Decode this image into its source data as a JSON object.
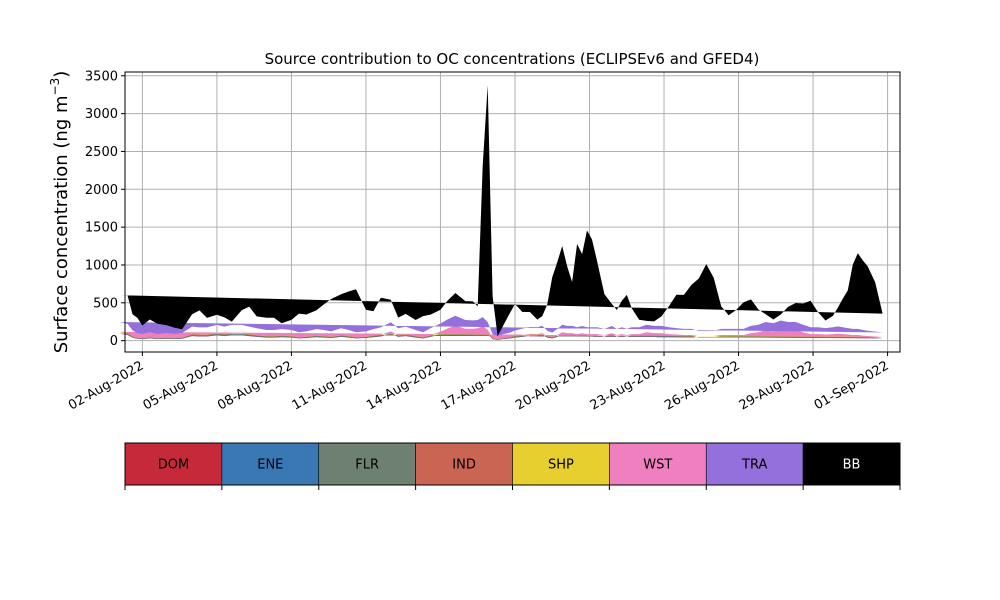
{
  "chart_data": {
    "type": "area",
    "stacked": true,
    "title": "Source contribution to OC concentrations (ECLIPSEv6 and GFED4)",
    "ylabel": "Surface concentration (ng m",
    "ylabel_superscript": "−3",
    "ylabel_close": ")",
    "ylim": [
      -150,
      3550
    ],
    "yticks": [
      0,
      500,
      1000,
      1500,
      2000,
      2500,
      3000,
      3500
    ],
    "xlim_days": [
      -0.7,
      30.5
    ],
    "xtick_labels": [
      "02-Aug-2022",
      "05-Aug-2022",
      "08-Aug-2022",
      "11-Aug-2022",
      "14-Aug-2022",
      "17-Aug-2022",
      "20-Aug-2022",
      "23-Aug-2022",
      "26-Aug-2022",
      "29-Aug-2022",
      "01-Sep-2022"
    ],
    "xtick_days": [
      0,
      3,
      6,
      9,
      12,
      15,
      18,
      21,
      24,
      27,
      30
    ],
    "grid": true,
    "x_days": [
      -0.9,
      -0.6,
      -0.4,
      -0.2,
      0,
      0.3,
      0.6,
      1,
      1.3,
      1.6,
      2,
      2.3,
      2.6,
      3,
      3.3,
      3.6,
      4,
      4.3,
      4.6,
      5,
      5.3,
      5.6,
      6,
      6.3,
      6.6,
      7,
      7.3,
      7.6,
      8,
      8.3,
      8.6,
      9,
      9.3,
      9.6,
      10,
      10.3,
      10.6,
      11,
      11.3,
      11.6,
      12,
      12.3,
      12.6,
      13,
      13.3,
      13.5,
      13.7,
      13.9,
      14.1,
      14.3,
      14.5,
      14.8,
      15,
      15.3,
      15.6,
      15.9,
      16.1,
      16.3,
      16.5,
      16.7,
      16.9,
      17.1,
      17.3,
      17.5,
      17.7,
      17.9,
      18.1,
      18.3,
      18.6,
      18.9,
      19.1,
      19.3,
      19.5,
      19.7,
      20,
      20.3,
      20.6,
      20.9,
      21.2,
      21.5,
      21.8,
      22.1,
      22.4,
      22.7,
      23,
      23.3,
      23.6,
      23.9,
      24.2,
      24.5,
      24.8,
      25.1,
      25.4,
      25.7,
      26,
      26.3,
      26.6,
      26.9,
      27.2,
      27.5,
      27.8,
      28,
      28.2,
      28.4,
      28.6,
      28.8,
      29,
      29.2,
      29.5,
      29.8,
      30
    ],
    "series": [
      {
        "name": "DOM",
        "color": "#c62a3a",
        "values": [
          90,
          75,
          40,
          25,
          20,
          30,
          20,
          25,
          20,
          25,
          60,
          55,
          55,
          70,
          60,
          70,
          70,
          60,
          50,
          40,
          40,
          45,
          40,
          30,
          35,
          45,
          40,
          35,
          50,
          40,
          30,
          35,
          45,
          55,
          90,
          50,
          60,
          40,
          30,
          50,
          80,
          110,
          130,
          100,
          100,
          100,
          120,
          90,
          20,
          10,
          20,
          30,
          40,
          50,
          60,
          60,
          70,
          40,
          30,
          50,
          80,
          70,
          70,
          60,
          70,
          60,
          60,
          60,
          50,
          70,
          50,
          60,
          50,
          60,
          60,
          80,
          70,
          70,
          60,
          55,
          50,
          50,
          40,
          40,
          40,
          50,
          50,
          50,
          50,
          70,
          80,
          100,
          90,
          110,
          100,
          100,
          80,
          60,
          60,
          55,
          60,
          65,
          60,
          55,
          50,
          50,
          45,
          40,
          35,
          30
        ]
      },
      {
        "name": "ENE",
        "color": "#3a78b4",
        "values": [
          3,
          3,
          2,
          2,
          2,
          2,
          2,
          2,
          2,
          2,
          3,
          3,
          3,
          3,
          3,
          3,
          3,
          3,
          3,
          3,
          3,
          3,
          3,
          2,
          2,
          3,
          3,
          2,
          3,
          3,
          2,
          2,
          3,
          3,
          3,
          3,
          3,
          3,
          2,
          3,
          3,
          3,
          3,
          3,
          3,
          3,
          3,
          3,
          2,
          2,
          2,
          2,
          3,
          3,
          3,
          3,
          3,
          3,
          2,
          3,
          3,
          3,
          3,
          3,
          3,
          3,
          3,
          3,
          3,
          3,
          3,
          3,
          3,
          3,
          3,
          3,
          3,
          3,
          3,
          3,
          3,
          3,
          3,
          3,
          3,
          3,
          3,
          3,
          3,
          3,
          3,
          3,
          3,
          3,
          3,
          3,
          3,
          3,
          3,
          3,
          3,
          3,
          3,
          3,
          3,
          3,
          3,
          3,
          3,
          3
        ]
      },
      {
        "name": "FLR",
        "color": "#6e8170",
        "values": [
          2,
          2,
          1,
          1,
          1,
          1,
          1,
          1,
          1,
          1,
          2,
          2,
          2,
          2,
          2,
          2,
          2,
          2,
          2,
          2,
          2,
          2,
          2,
          1,
          1,
          2,
          2,
          1,
          2,
          2,
          1,
          1,
          2,
          2,
          2,
          2,
          2,
          2,
          1,
          2,
          2,
          2,
          2,
          2,
          2,
          2,
          2,
          2,
          1,
          1,
          1,
          1,
          2,
          2,
          2,
          2,
          2,
          2,
          1,
          2,
          2,
          2,
          2,
          2,
          2,
          2,
          2,
          2,
          2,
          2,
          2,
          2,
          2,
          2,
          2,
          2,
          2,
          2,
          2,
          2,
          2,
          2,
          2,
          2,
          2,
          2,
          2,
          2,
          2,
          2,
          2,
          2,
          2,
          2,
          2,
          2,
          2,
          2,
          2,
          2,
          2,
          2,
          2,
          2,
          2,
          2,
          2,
          2,
          2,
          2
        ]
      },
      {
        "name": "IND",
        "color": "#c96552",
        "values": [
          15,
          14,
          10,
          8,
          7,
          9,
          7,
          8,
          7,
          8,
          14,
          13,
          13,
          15,
          14,
          15,
          15,
          14,
          12,
          10,
          10,
          11,
          10,
          8,
          9,
          11,
          10,
          9,
          12,
          10,
          8,
          9,
          11,
          13,
          18,
          12,
          14,
          10,
          8,
          12,
          16,
          20,
          24,
          20,
          20,
          20,
          22,
          18,
          6,
          4,
          6,
          8,
          10,
          12,
          14,
          14,
          15,
          10,
          8,
          12,
          16,
          15,
          15,
          14,
          15,
          14,
          14,
          14,
          12,
          15,
          12,
          14,
          12,
          14,
          14,
          16,
          15,
          15,
          14,
          13,
          12,
          12,
          10,
          10,
          10,
          12,
          12,
          12,
          12,
          15,
          16,
          20,
          18,
          22,
          20,
          20,
          16,
          14,
          14,
          13,
          14,
          15,
          14,
          13,
          12,
          12,
          11,
          10,
          9,
          8
        ]
      },
      {
        "name": "SHP",
        "color": "#e6cf2e",
        "values": [
          3,
          3,
          2,
          2,
          2,
          2,
          2,
          2,
          2,
          2,
          3,
          3,
          3,
          3,
          3,
          3,
          3,
          3,
          3,
          3,
          3,
          3,
          3,
          2,
          2,
          3,
          3,
          2,
          3,
          3,
          2,
          2,
          3,
          3,
          3,
          3,
          3,
          3,
          2,
          3,
          10,
          20,
          30,
          25,
          25,
          30,
          35,
          25,
          5,
          2,
          3,
          4,
          6,
          8,
          6,
          5,
          5,
          3,
          3,
          4,
          5,
          5,
          5,
          4,
          4,
          4,
          4,
          4,
          4,
          4,
          4,
          4,
          4,
          4,
          4,
          5,
          5,
          5,
          4,
          4,
          4,
          4,
          3,
          3,
          3,
          4,
          4,
          4,
          4,
          5,
          5,
          6,
          6,
          7,
          6,
          6,
          5,
          4,
          4,
          4,
          4,
          4,
          4,
          4,
          4,
          4,
          3,
          3,
          3,
          3
        ]
      },
      {
        "name": "WST",
        "color": "#f07fbf",
        "values": [
          4,
          4,
          3,
          2,
          2,
          3,
          2,
          3,
          2,
          3,
          4,
          4,
          4,
          5,
          4,
          5,
          5,
          4,
          4,
          3,
          3,
          3,
          3,
          2,
          3,
          3,
          3,
          3,
          4,
          3,
          2,
          3,
          3,
          4,
          6,
          4,
          4,
          3,
          2,
          4,
          6,
          8,
          10,
          8,
          8,
          8,
          9,
          7,
          2,
          1,
          2,
          2,
          3,
          4,
          4,
          4,
          5,
          3,
          2,
          3,
          5,
          5,
          5,
          4,
          5,
          4,
          4,
          4,
          4,
          5,
          4,
          4,
          4,
          4,
          4,
          5,
          5,
          5,
          4,
          4,
          4,
          4,
          3,
          3,
          3,
          4,
          4,
          4,
          4,
          5,
          5,
          6,
          6,
          7,
          6,
          6,
          5,
          4,
          4,
          4,
          4,
          4,
          4,
          4,
          4,
          4,
          3,
          3,
          3,
          2
        ]
      },
      {
        "name": "TRA",
        "color": "#9370db",
        "values": [
          130,
          120,
          80,
          60,
          55,
          65,
          55,
          60,
          55,
          60,
          100,
          95,
          95,
          110,
          100,
          110,
          110,
          100,
          90,
          80,
          80,
          85,
          80,
          65,
          70,
          85,
          80,
          70,
          90,
          80,
          65,
          70,
          85,
          95,
          120,
          90,
          100,
          80,
          65,
          90,
          110,
          120,
          130,
          115,
          110,
          110,
          120,
          100,
          50,
          40,
          50,
          60,
          70,
          80,
          90,
          90,
          95,
          70,
          60,
          80,
          100,
          95,
          95,
          90,
          95,
          90,
          90,
          90,
          80,
          95,
          80,
          90,
          80,
          90,
          90,
          100,
          95,
          95,
          90,
          85,
          80,
          80,
          70,
          70,
          70,
          80,
          80,
          80,
          80,
          95,
          100,
          110,
          105,
          115,
          110,
          110,
          100,
          90,
          90,
          85,
          90,
          95,
          90,
          85,
          80,
          80,
          75,
          70,
          65,
          60
        ]
      },
      {
        "name": "BB",
        "color": "#000000",
        "values": [
          353,
          379,
          212,
          200,
          111,
          168,
          136,
          101,
          81,
          49,
          164,
          225,
          125,
          134,
          121,
          44,
          195,
          264,
          156,
          162,
          161,
          77,
          133,
          247,
          224,
          248,
          337,
          429,
          450,
          509,
          570,
          287,
          236,
          393,
          299,
          141,
          167,
          132,
          215,
          180,
          180,
          250,
          300,
          250,
          250,
          180,
          2000,
          3130,
          500,
          0,
          100,
          260,
          350,
          220,
          200,
          100,
          130,
          350,
          730,
          880,
          1040,
          790,
          580,
          1100,
          950,
          1280,
          1160,
          880,
          460,
          290,
          250,
          350,
          450,
          250,
          100,
          50,
          60,
          125,
          280,
          440,
          450,
          580,
          690,
          880,
          700,
          300,
          180,
          250,
          350,
          350,
          200,
          100,
          50,
          80,
          200,
          250,
          280,
          350,
          200,
          100,
          150,
          250,
          380,
          500,
          850,
          1000,
          920,
          850,
          650,
          250
        ]
      }
    ],
    "legend": [
      "DOM",
      "ENE",
      "FLR",
      "IND",
      "SHP",
      "WST",
      "TRA",
      "BB"
    ],
    "legend_placement": "bottom (colour bar)"
  }
}
